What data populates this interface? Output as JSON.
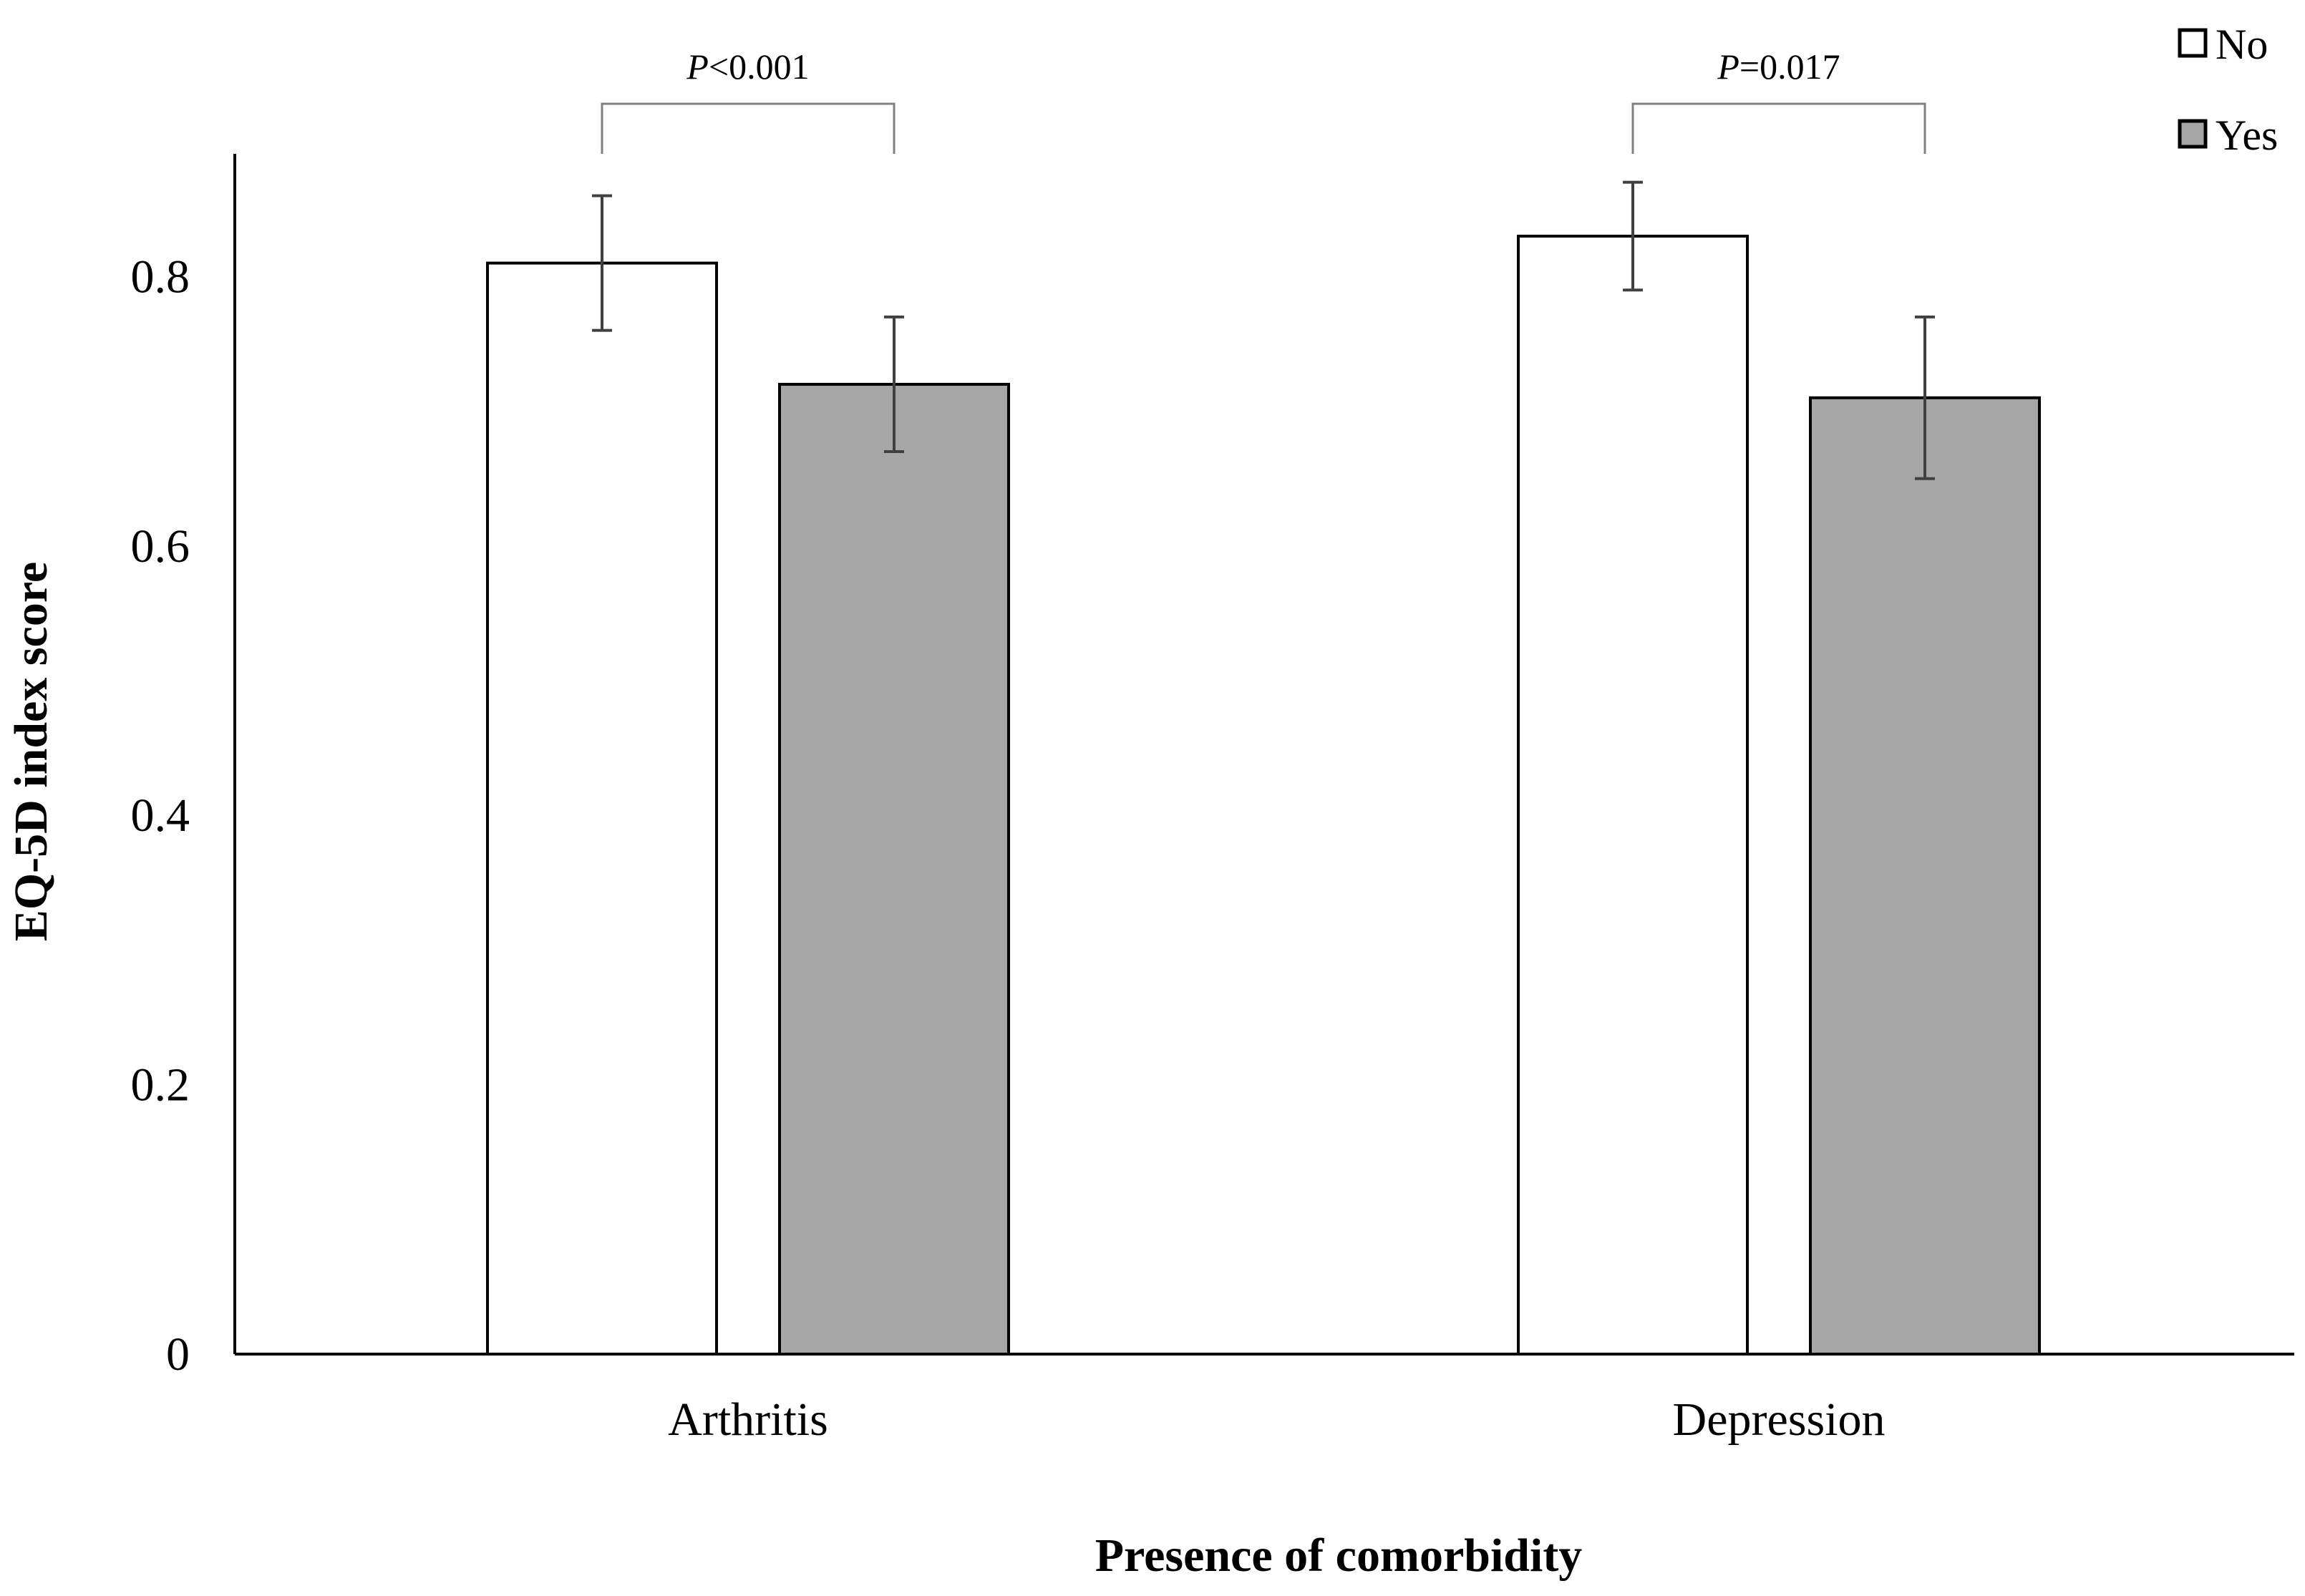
{
  "chart_data": {
    "type": "bar",
    "title": "",
    "xlabel": "Presence of comorbidity",
    "ylabel": "EQ-5D index score",
    "categories": [
      "Arthritis",
      "Depression"
    ],
    "ylim": [
      0,
      0.9
    ],
    "yticks": [
      {
        "value": 0,
        "label": "0"
      },
      {
        "value": 0.2,
        "label": "0.2"
      },
      {
        "value": 0.4,
        "label": "0.4"
      },
      {
        "value": 0.6,
        "label": "0.6"
      },
      {
        "value": 0.8,
        "label": "0.8"
      }
    ],
    "grid": false,
    "legend_position": "top-right",
    "series": [
      {
        "name": "No",
        "color": "#ffffff",
        "values": [
          0.81,
          0.83
        ],
        "err_low": [
          0.76,
          0.79
        ],
        "err_high": [
          0.86,
          0.87
        ]
      },
      {
        "name": "Yes",
        "color": "#a6a6a6",
        "values": [
          0.72,
          0.71
        ],
        "err_low": [
          0.67,
          0.65
        ],
        "err_high": [
          0.77,
          0.77
        ]
      }
    ],
    "annotations": [
      {
        "category": "Arthritis",
        "p_symbol": "P",
        "p_rest": "<0.001"
      },
      {
        "category": "Depression",
        "p_symbol": "P",
        "p_rest": "=0.017"
      }
    ]
  }
}
